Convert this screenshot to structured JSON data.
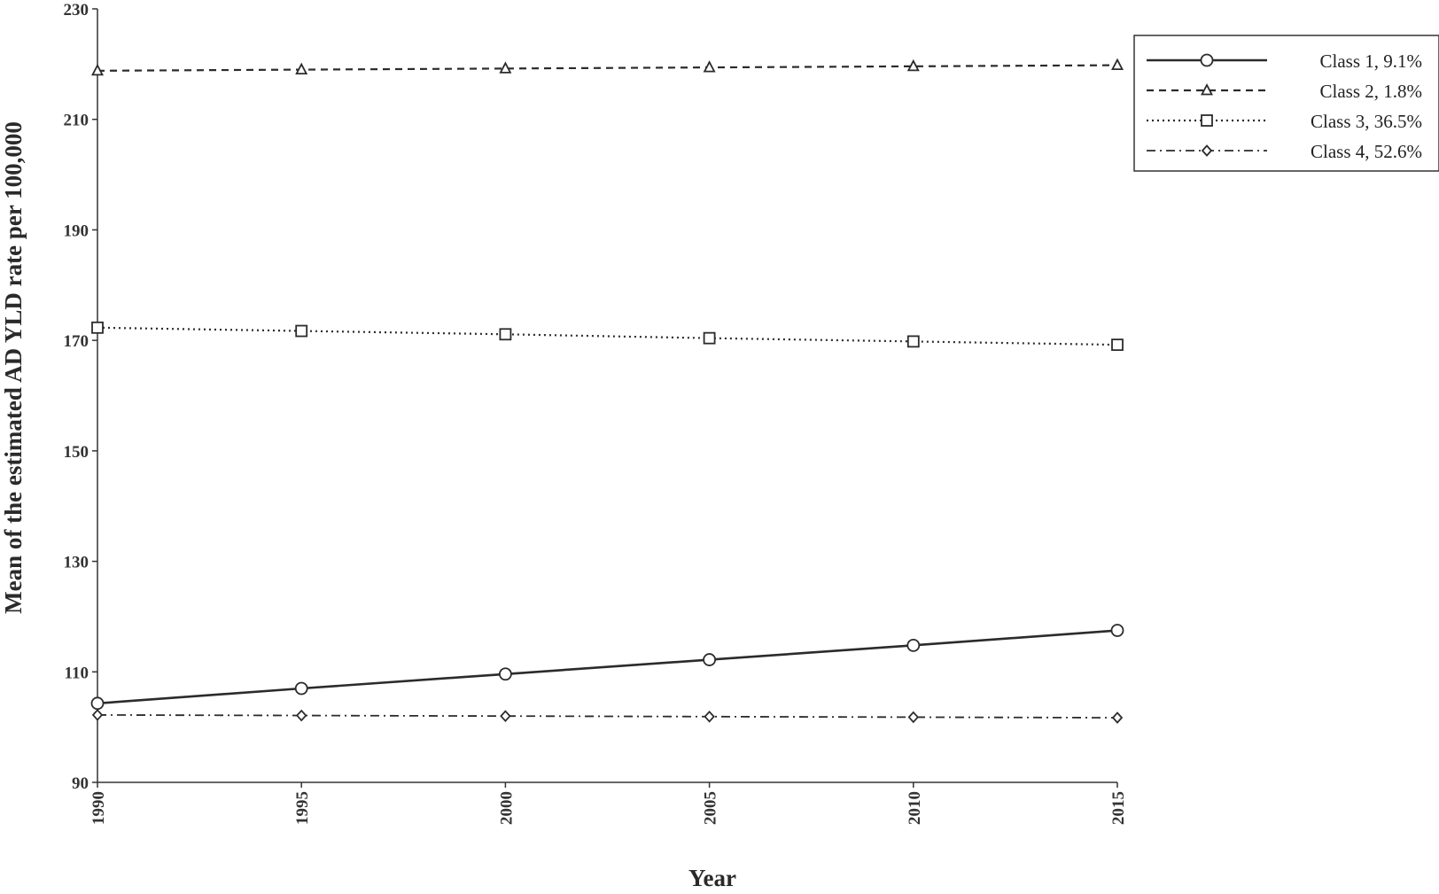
{
  "chart_data": {
    "type": "line",
    "title": "",
    "xlabel": "Year",
    "ylabel": "Mean of the estimated AD YLD rate per 100,000",
    "x": [
      1990,
      1995,
      2000,
      2005,
      2010,
      2015
    ],
    "x_tick_labels": [
      "1990",
      "1995",
      "2000",
      "2005",
      "2010",
      "2015"
    ],
    "ylim": [
      90,
      230
    ],
    "y_ticks": [
      90,
      110,
      130,
      150,
      170,
      190,
      210,
      230
    ],
    "y_tick_labels": [
      "90",
      "110",
      "130",
      "150",
      "170",
      "190",
      "210",
      "230"
    ],
    "grid": false,
    "legend_position": "top-right",
    "series": [
      {
        "name": "Class 1, 9.1%",
        "values": [
          104.3,
          107.0,
          109.6,
          112.2,
          114.8,
          117.5
        ],
        "line_style": "solid",
        "marker": "circle",
        "color": "#2b2b2b"
      },
      {
        "name": "Class 2, 1.8%",
        "values": [
          218.8,
          219.0,
          219.2,
          219.4,
          219.6,
          219.8
        ],
        "line_style": "dashed",
        "marker": "triangle",
        "color": "#2b2b2b"
      },
      {
        "name": "Class 3, 36.5%",
        "values": [
          172.3,
          171.7,
          171.1,
          170.4,
          169.8,
          169.2
        ],
        "line_style": "dotted",
        "marker": "square",
        "color": "#2b2b2b"
      },
      {
        "name": "Class 4, 52.6%",
        "values": [
          102.2,
          102.1,
          102.0,
          101.9,
          101.8,
          101.7
        ],
        "line_style": "dash-dot",
        "marker": "diamond",
        "color": "#2b2b2b"
      }
    ]
  }
}
